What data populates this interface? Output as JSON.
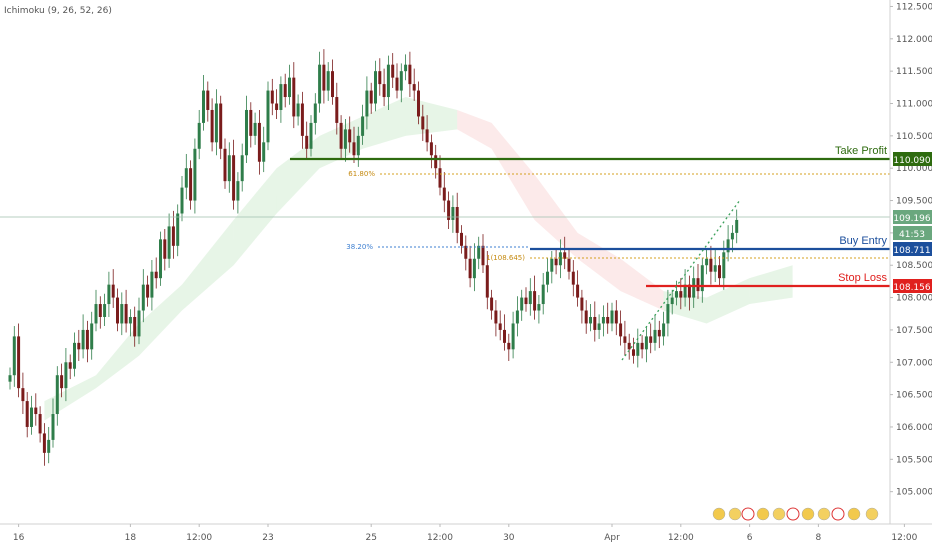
{
  "indicator_label": "Ichimoku (9, 26, 52, 26)",
  "levels": {
    "take_profit": {
      "label": "Take Profit",
      "price": "110.090",
      "color": "#2e6b0f"
    },
    "buy_entry": {
      "label": "Buy Entry",
      "price": "108.711",
      "color": "#1c4f9c"
    },
    "stop_loss": {
      "label": "Stop Loss",
      "price": "108.156",
      "color": "#e0201e"
    }
  },
  "current_price": {
    "price": "109.196",
    "countdown": "41:53",
    "color": "#6aa77e"
  },
  "fib": {
    "f618": "61.80%",
    "f382": "38.20%",
    "f1": "1(108.645)"
  },
  "chart_data": {
    "type": "candlestick",
    "title": "",
    "xlabel": "",
    "ylabel": "",
    "y_ticks": [
      "112.500",
      "112.000",
      "111.500",
      "111.000",
      "110.500",
      "110.000",
      "109.500",
      "109.000",
      "108.500",
      "108.000",
      "107.500",
      "107.000",
      "106.500",
      "106.000",
      "105.500",
      "105.000"
    ],
    "ylim": [
      104.5,
      112.6
    ],
    "x_ticks": [
      {
        "label": "16",
        "bar": 2
      },
      {
        "label": "18",
        "bar": 28
      },
      {
        "label": "12:00",
        "bar": 44
      },
      {
        "label": "23",
        "bar": 60
      },
      {
        "label": "25",
        "bar": 84
      },
      {
        "label": "12:00",
        "bar": 100
      },
      {
        "label": "30",
        "bar": 116
      },
      {
        "label": "Apr",
        "bar": 140
      },
      {
        "label": "12:00",
        "bar": 156
      },
      {
        "label": "6",
        "bar": 172
      },
      {
        "label": "8",
        "bar": 188
      },
      {
        "label": "12:00",
        "bar": 208
      }
    ],
    "close_series": [
      106.8,
      107.4,
      106.6,
      106.4,
      106.0,
      106.3,
      106.2,
      105.9,
      105.6,
      105.8,
      106.2,
      106.8,
      106.6,
      107.0,
      106.9,
      107.3,
      107.2,
      107.5,
      107.2,
      107.6,
      107.9,
      107.7,
      107.9,
      108.2,
      108.0,
      107.6,
      107.9,
      107.6,
      107.7,
      107.4,
      107.8,
      108.2,
      108.0,
      108.4,
      108.3,
      108.9,
      108.6,
      109.1,
      108.8,
      109.3,
      109.7,
      110.0,
      109.5,
      110.3,
      110.7,
      111.2,
      110.9,
      110.4,
      111.0,
      110.3,
      109.8,
      110.2,
      109.5,
      109.8,
      110.2,
      110.9,
      110.5,
      110.7,
      110.1,
      110.4,
      111.2,
      111.0,
      110.9,
      111.3,
      111.1,
      111.4,
      110.8,
      111.0,
      110.5,
      110.3,
      110.7,
      111.0,
      111.6,
      111.2,
      111.5,
      111.1,
      110.7,
      110.3,
      110.6,
      110.4,
      110.2,
      110.5,
      110.8,
      111.2,
      111.0,
      111.5,
      111.3,
      111.1,
      111.6,
      111.4,
      111.2,
      111.5,
      111.6,
      111.3,
      111.2,
      110.8,
      110.6,
      110.4,
      110.2,
      110.0,
      109.7,
      109.5,
      109.2,
      109.4,
      109.0,
      108.8,
      108.6,
      108.3,
      108.6,
      108.8,
      108.5,
      108.0,
      107.8,
      107.6,
      107.5,
      107.3,
      107.2,
      107.6,
      107.8,
      108.0,
      107.9,
      108.1,
      107.8,
      107.9,
      108.2,
      108.4,
      108.6,
      108.5,
      108.7,
      108.6,
      108.4,
      108.2,
      108.0,
      107.8,
      107.6,
      107.7,
      107.5,
      107.6,
      107.7,
      107.6,
      107.8,
      107.6,
      107.4,
      107.3,
      107.2,
      107.1,
      107.3,
      107.2,
      107.4,
      107.3,
      107.5,
      107.4,
      107.6,
      107.9,
      108.0,
      108.1,
      108.0,
      108.2,
      108.0,
      108.3,
      108.1,
      108.5,
      108.6,
      108.4,
      108.5,
      108.3,
      108.7,
      108.9,
      109.0,
      109.2
    ],
    "cloud": [
      {
        "bar": 8,
        "top": 106.4,
        "bot": 106.1
      },
      {
        "bar": 20,
        "top": 106.8,
        "bot": 106.6
      },
      {
        "bar": 30,
        "top": 107.6,
        "bot": 107.1
      },
      {
        "bar": 40,
        "top": 108.2,
        "bot": 107.8
      },
      {
        "bar": 52,
        "top": 109.2,
        "bot": 108.5
      },
      {
        "bar": 62,
        "top": 110.0,
        "bot": 109.3
      },
      {
        "bar": 72,
        "top": 110.5,
        "bot": 110.0
      },
      {
        "bar": 82,
        "top": 110.8,
        "bot": 110.3
      },
      {
        "bar": 92,
        "top": 111.1,
        "bot": 110.5
      },
      {
        "bar": 104,
        "top": 110.9,
        "bot": 110.6
      },
      {
        "bar": 112,
        "top": 110.7,
        "bot": 110.3
      },
      {
        "bar": 122,
        "top": 109.9,
        "bot": 109.2
      },
      {
        "bar": 132,
        "top": 109.0,
        "bot": 108.6
      },
      {
        "bar": 142,
        "top": 108.6,
        "bot": 108.1
      },
      {
        "bar": 152,
        "top": 108.1,
        "bot": 107.8
      },
      {
        "bar": 162,
        "top": 108.0,
        "bot": 107.6
      },
      {
        "bar": 172,
        "top": 108.3,
        "bot": 107.9
      },
      {
        "bar": 182,
        "top": 108.5,
        "bot": 108.0
      }
    ]
  }
}
